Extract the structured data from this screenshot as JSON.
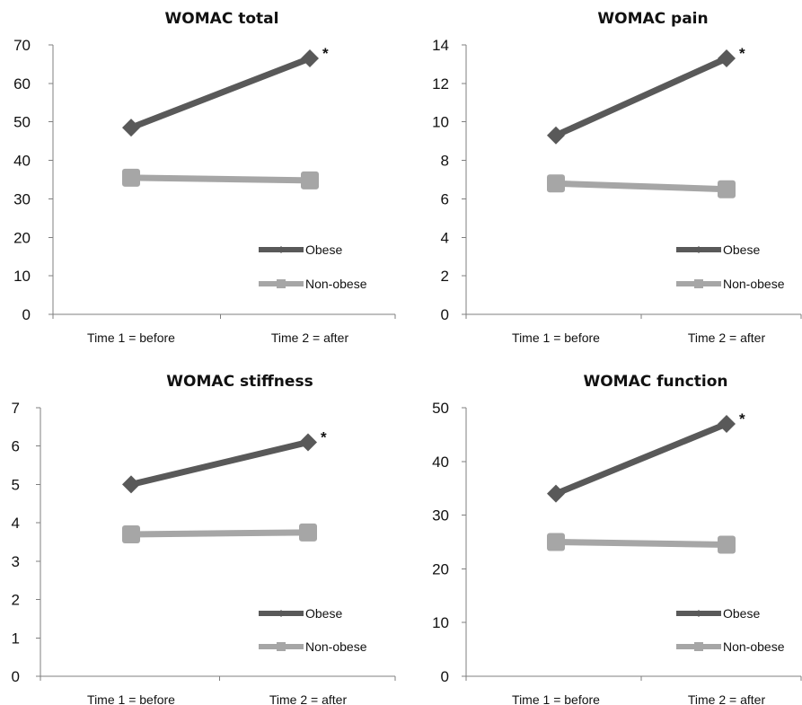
{
  "chart_data": [
    {
      "type": "line",
      "title": "WOMAC total",
      "categories": [
        "Time 1 = before",
        "Time 2 = after"
      ],
      "ylim": [
        0,
        70
      ],
      "yticks": [
        0,
        10,
        20,
        30,
        40,
        50,
        60,
        70
      ],
      "series": [
        {
          "name": "Obese",
          "values": [
            48.5,
            66.5
          ],
          "color": "#595959",
          "marker": "diamond"
        },
        {
          "name": "Non-obese",
          "values": [
            35.5,
            34.8
          ],
          "color": "#a6a6a6",
          "marker": "square"
        }
      ],
      "annotation": "*",
      "grid": false,
      "legend": "bottom-right"
    },
    {
      "type": "line",
      "title": "WOMAC pain",
      "categories": [
        "Time 1 = before",
        "Time 2 = after"
      ],
      "ylim": [
        0,
        14
      ],
      "yticks": [
        0,
        2,
        4,
        6,
        8,
        10,
        12,
        14
      ],
      "series": [
        {
          "name": "Obese",
          "values": [
            9.3,
            13.3
          ],
          "color": "#595959",
          "marker": "diamond"
        },
        {
          "name": "Non-obese",
          "values": [
            6.8,
            6.5
          ],
          "color": "#a6a6a6",
          "marker": "square"
        }
      ],
      "annotation": "*",
      "grid": false,
      "legend": "bottom-right"
    },
    {
      "type": "line",
      "title": "WOMAC stiffness",
      "categories": [
        "Time 1 = before",
        "Time 2 = after"
      ],
      "ylim": [
        0,
        7
      ],
      "yticks": [
        0,
        1,
        2,
        3,
        4,
        5,
        6,
        7
      ],
      "series": [
        {
          "name": "Obese",
          "values": [
            5.0,
            6.1
          ],
          "color": "#595959",
          "marker": "diamond"
        },
        {
          "name": "Non-obese",
          "values": [
            3.7,
            3.75
          ],
          "color": "#a6a6a6",
          "marker": "square"
        }
      ],
      "annotation": "*",
      "grid": false,
      "legend": "bottom-right"
    },
    {
      "type": "line",
      "title": "WOMAC function",
      "categories": [
        "Time 1 = before",
        "Time 2 = after"
      ],
      "ylim": [
        0,
        50
      ],
      "yticks": [
        0,
        10,
        20,
        30,
        40,
        50
      ],
      "series": [
        {
          "name": "Obese",
          "values": [
            34,
            47
          ],
          "color": "#595959",
          "marker": "diamond"
        },
        {
          "name": "Non-obese",
          "values": [
            25,
            24.5
          ],
          "color": "#a6a6a6",
          "marker": "square"
        }
      ],
      "annotation": "*",
      "grid": false,
      "legend": "bottom-right"
    }
  ]
}
